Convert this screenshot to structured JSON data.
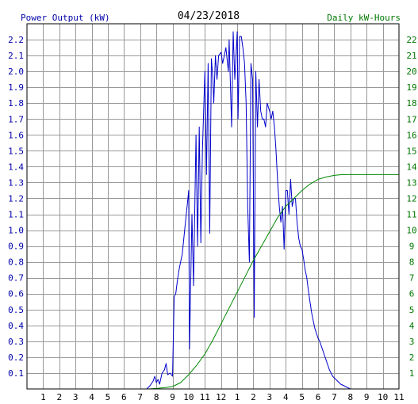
{
  "header": {
    "left_label": "Power Output (kW)",
    "date": "04/23/2018",
    "right_label": "Daily kW-Hours"
  },
  "colors": {
    "power": "#0000cc",
    "energy": "#008800",
    "grid": "#999999",
    "left_axis_text": "#0000aa",
    "right_axis_text": "#007700"
  },
  "chart_data": {
    "type": "line",
    "title": "04/23/2018",
    "xlabel": "",
    "x_unit": "hour of day",
    "xlim": [
      0,
      23
    ],
    "x_ticks": [
      {
        "x": 1,
        "label": "1"
      },
      {
        "x": 2,
        "label": "2"
      },
      {
        "x": 3,
        "label": "3"
      },
      {
        "x": 4,
        "label": "4"
      },
      {
        "x": 5,
        "label": "5"
      },
      {
        "x": 6,
        "label": "6"
      },
      {
        "x": 7,
        "label": "7"
      },
      {
        "x": 8,
        "label": "8"
      },
      {
        "x": 9,
        "label": "9"
      },
      {
        "x": 10,
        "label": "10"
      },
      {
        "x": 11,
        "label": "11"
      },
      {
        "x": 12,
        "label": "12"
      },
      {
        "x": 13,
        "label": "1"
      },
      {
        "x": 14,
        "label": "2"
      },
      {
        "x": 15,
        "label": "3"
      },
      {
        "x": 16,
        "label": "4"
      },
      {
        "x": 17,
        "label": "5"
      },
      {
        "x": 18,
        "label": "6"
      },
      {
        "x": 19,
        "label": "7"
      },
      {
        "x": 20,
        "label": "8"
      },
      {
        "x": 21,
        "label": "9"
      },
      {
        "x": 22,
        "label": "10"
      },
      {
        "x": 23,
        "label": "11"
      }
    ],
    "y_left": {
      "label": "Power Output (kW)",
      "lim": [
        0,
        2.3
      ],
      "ticks": [
        "0.1",
        "0.2",
        "0.3",
        "0.4",
        "0.5",
        "0.6",
        "0.7",
        "0.8",
        "0.9",
        "1.0",
        "1.1",
        "1.2",
        "1.3",
        "1.4",
        "1.5",
        "1.6",
        "1.7",
        "1.8",
        "1.9",
        "2.0",
        "2.1",
        "2.2"
      ]
    },
    "y_right": {
      "label": "Daily kW-Hours",
      "lim": [
        0,
        23
      ],
      "ticks": [
        "1",
        "2",
        "3",
        "4",
        "5",
        "6",
        "7",
        "8",
        "9",
        "10",
        "11",
        "12",
        "13",
        "14",
        "15",
        "16",
        "17",
        "18",
        "19",
        "20",
        "21",
        "22"
      ]
    },
    "grid": true,
    "series": [
      {
        "name": "Power Output (kW)",
        "axis": "left",
        "points": [
          [
            7.4,
            0.0
          ],
          [
            7.6,
            0.02
          ],
          [
            7.8,
            0.05
          ],
          [
            7.9,
            0.08
          ],
          [
            8.0,
            0.04
          ],
          [
            8.1,
            0.06
          ],
          [
            8.2,
            0.03
          ],
          [
            8.35,
            0.1
          ],
          [
            8.5,
            0.12
          ],
          [
            8.6,
            0.16
          ],
          [
            8.7,
            0.09
          ],
          [
            8.85,
            0.1
          ],
          [
            9.0,
            0.08
          ],
          [
            9.1,
            0.58
          ],
          [
            9.2,
            0.6
          ],
          [
            9.3,
            0.68
          ],
          [
            9.4,
            0.75
          ],
          [
            9.5,
            0.8
          ],
          [
            9.6,
            0.85
          ],
          [
            9.7,
            0.95
          ],
          [
            9.8,
            1.05
          ],
          [
            9.9,
            1.15
          ],
          [
            10.0,
            1.25
          ],
          [
            10.05,
            0.25
          ],
          [
            10.2,
            1.1
          ],
          [
            10.3,
            0.65
          ],
          [
            10.45,
            1.6
          ],
          [
            10.55,
            0.9
          ],
          [
            10.65,
            1.65
          ],
          [
            10.75,
            0.92
          ],
          [
            10.85,
            1.5
          ],
          [
            11.0,
            2.0
          ],
          [
            11.1,
            1.35
          ],
          [
            11.2,
            2.05
          ],
          [
            11.3,
            0.98
          ],
          [
            11.4,
            2.08
          ],
          [
            11.5,
            1.95
          ],
          [
            11.55,
            1.8
          ],
          [
            11.65,
            2.1
          ],
          [
            11.75,
            1.95
          ],
          [
            11.85,
            2.1
          ],
          [
            12.0,
            2.12
          ],
          [
            12.1,
            2.05
          ],
          [
            12.2,
            2.1
          ],
          [
            12.3,
            2.15
          ],
          [
            12.45,
            2.0
          ],
          [
            12.5,
            2.2
          ],
          [
            12.65,
            1.65
          ],
          [
            12.75,
            2.25
          ],
          [
            12.85,
            1.95
          ],
          [
            13.0,
            2.25
          ],
          [
            13.05,
            1.7
          ],
          [
            13.15,
            2.22
          ],
          [
            13.25,
            2.22
          ],
          [
            13.35,
            2.15
          ],
          [
            13.45,
            2.05
          ],
          [
            13.55,
            1.8
          ],
          [
            13.65,
            1.15
          ],
          [
            13.75,
            0.8
          ],
          [
            13.85,
            2.05
          ],
          [
            13.95,
            1.95
          ],
          [
            14.05,
            0.45
          ],
          [
            14.15,
            2.0
          ],
          [
            14.25,
            1.65
          ],
          [
            14.35,
            1.95
          ],
          [
            14.45,
            1.75
          ],
          [
            14.55,
            1.7
          ],
          [
            14.65,
            1.7
          ],
          [
            14.75,
            1.65
          ],
          [
            14.85,
            1.8
          ],
          [
            15.0,
            1.75
          ],
          [
            15.1,
            1.7
          ],
          [
            15.2,
            1.75
          ],
          [
            15.3,
            1.65
          ],
          [
            15.4,
            1.5
          ],
          [
            15.5,
            1.3
          ],
          [
            15.6,
            1.15
          ],
          [
            15.7,
            1.05
          ],
          [
            15.8,
            1.15
          ],
          [
            15.9,
            0.88
          ],
          [
            16.0,
            1.25
          ],
          [
            16.1,
            1.25
          ],
          [
            16.2,
            1.1
          ],
          [
            16.3,
            1.32
          ],
          [
            16.4,
            1.15
          ],
          [
            16.5,
            1.2
          ],
          [
            16.6,
            1.2
          ],
          [
            16.7,
            1.05
          ],
          [
            16.8,
            0.95
          ],
          [
            16.9,
            0.9
          ],
          [
            17.0,
            0.88
          ],
          [
            17.1,
            0.82
          ],
          [
            17.2,
            0.75
          ],
          [
            17.3,
            0.7
          ],
          [
            17.4,
            0.62
          ],
          [
            17.5,
            0.55
          ],
          [
            17.6,
            0.48
          ],
          [
            17.7,
            0.43
          ],
          [
            17.8,
            0.38
          ],
          [
            17.9,
            0.35
          ],
          [
            18.0,
            0.32
          ],
          [
            18.1,
            0.3
          ],
          [
            18.2,
            0.27
          ],
          [
            18.3,
            0.24
          ],
          [
            18.4,
            0.21
          ],
          [
            18.5,
            0.18
          ],
          [
            18.6,
            0.15
          ],
          [
            18.7,
            0.12
          ],
          [
            18.8,
            0.1
          ],
          [
            18.9,
            0.08
          ],
          [
            19.0,
            0.07
          ],
          [
            19.2,
            0.05
          ],
          [
            19.4,
            0.03
          ],
          [
            19.6,
            0.02
          ],
          [
            19.8,
            0.01
          ],
          [
            20.0,
            0.0
          ]
        ]
      },
      {
        "name": "Daily kW-Hours",
        "axis": "right",
        "points": [
          [
            7.5,
            0.0
          ],
          [
            8.0,
            0.03
          ],
          [
            8.5,
            0.08
          ],
          [
            9.0,
            0.15
          ],
          [
            9.5,
            0.4
          ],
          [
            10.0,
            0.9
          ],
          [
            10.5,
            1.5
          ],
          [
            11.0,
            2.2
          ],
          [
            11.5,
            3.1
          ],
          [
            12.0,
            4.1
          ],
          [
            12.5,
            5.1
          ],
          [
            13.0,
            6.1
          ],
          [
            13.5,
            7.1
          ],
          [
            14.0,
            8.1
          ],
          [
            14.5,
            9.0
          ],
          [
            15.0,
            9.9
          ],
          [
            15.5,
            10.8
          ],
          [
            16.0,
            11.5
          ],
          [
            16.5,
            12.0
          ],
          [
            17.0,
            12.5
          ],
          [
            17.5,
            12.9
          ],
          [
            18.0,
            13.2
          ],
          [
            18.5,
            13.35
          ],
          [
            19.0,
            13.45
          ],
          [
            19.5,
            13.5
          ],
          [
            20.0,
            13.5
          ],
          [
            21.0,
            13.5
          ],
          [
            22.0,
            13.5
          ],
          [
            23.0,
            13.5
          ]
        ]
      }
    ]
  }
}
